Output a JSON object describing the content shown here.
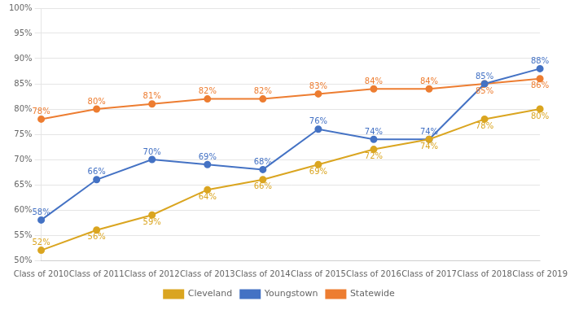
{
  "chart_data": {
    "type": "line",
    "categories": [
      "Class of 2010",
      "Class of 2011",
      "Class of 2012",
      "Class of 2013",
      "Class of 2014",
      "Class of 2015",
      "Class of 2016",
      "Class of 2017",
      "Class of 2018",
      "Class of 2019"
    ],
    "series": [
      {
        "name": "Cleveland",
        "color": "#DAA520",
        "values": [
          52,
          56,
          59,
          64,
          66,
          69,
          72,
          74,
          78,
          80
        ],
        "value_labels": [
          "52%",
          "56%",
          "59%",
          "64%",
          "66%",
          "69%",
          "72%",
          "74%",
          "78%",
          "80%"
        ]
      },
      {
        "name": "Youngstown",
        "color": "#4472C4",
        "values": [
          58,
          66,
          70,
          69,
          68,
          76,
          74,
          74,
          85,
          88
        ],
        "value_labels": [
          "58%",
          "66%",
          "70%",
          "69%",
          "68%",
          "76%",
          "74%",
          "74%",
          "85%",
          "88%"
        ]
      },
      {
        "name": "Statewide",
        "color": "#ED7D31",
        "values": [
          78,
          80,
          81,
          82,
          82,
          83,
          84,
          84,
          85,
          86
        ],
        "value_labels": [
          "78%",
          "80%",
          "81%",
          "82%",
          "82%",
          "83%",
          "84%",
          "84%",
          "85%",
          "86%"
        ]
      }
    ],
    "ylim": [
      50,
      100
    ],
    "yticks": [
      {
        "value": 50,
        "label": "50%"
      },
      {
        "value": 55,
        "label": "55%"
      },
      {
        "value": 60,
        "label": "60%"
      },
      {
        "value": 65,
        "label": "65%"
      },
      {
        "value": 70,
        "label": "70%"
      },
      {
        "value": 75,
        "label": "75%"
      },
      {
        "value": 80,
        "label": "80%"
      },
      {
        "value": 85,
        "label": "85%"
      },
      {
        "value": 90,
        "label": "90%"
      },
      {
        "value": 95,
        "label": "95%"
      },
      {
        "value": 100,
        "label": "100%"
      }
    ],
    "grid": true,
    "legend": "bottom",
    "marker": "circle",
    "data_labels": true
  }
}
